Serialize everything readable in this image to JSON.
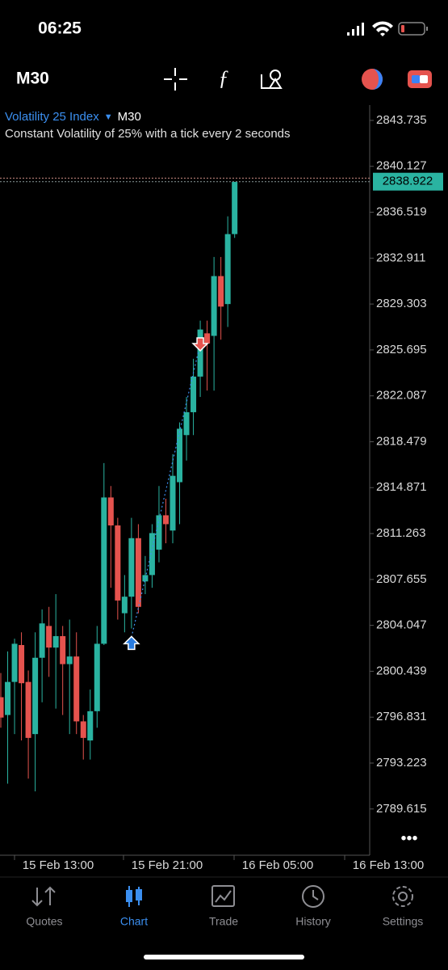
{
  "status_bar": {
    "time": "06:25"
  },
  "toolbar": {
    "timeframe": "M30"
  },
  "chart_header": {
    "symbol": "Volatility 25 Index",
    "timeframe": "M30",
    "description": "Constant Volatility of 25% with a tick every 2 seconds"
  },
  "chart_data": {
    "type": "candlestick",
    "open": [
      2798.4,
      2797.0,
      2799.6,
      2802.5,
      2799.6,
      2795.5,
      2801.5,
      2804.0,
      2802.3,
      2803.2,
      2801.0,
      2801.6,
      2796.5,
      2795.0,
      2797.3,
      2802.6,
      2814.1,
      2811.9,
      2805.0,
      2806.3,
      2810.9,
      2807.5,
      2808.0,
      2810.0,
      2812.7,
      2811.5,
      2815.3,
      2819.0,
      2820.8,
      2823.6,
      2827.0,
      2826.8,
      2831.5,
      2829.3,
      2834.8
    ],
    "high": [
      2800.3,
      2802.0,
      2803.0,
      2803.5,
      2800.5,
      2803.5,
      2805.3,
      2805.5,
      2806.5,
      2804.0,
      2804.5,
      2803.5,
      2797.0,
      2799.0,
      2804.0,
      2816.8,
      2815.0,
      2812.5,
      2808.0,
      2812.5,
      2812.0,
      2809.5,
      2812.0,
      2815.0,
      2814.0,
      2817.5,
      2820.0,
      2822.0,
      2825.0,
      2828.0,
      2828.0,
      2833.0,
      2833.0,
      2836.2,
      2838.9
    ],
    "low": [
      2796.0,
      2791.6,
      2795.5,
      2795.0,
      2792.0,
      2791.0,
      2798.0,
      2800.0,
      2797.5,
      2797.0,
      2795.5,
      2795.5,
      2793.5,
      2793.5,
      2796.0,
      2802.5,
      2807.0,
      2804.5,
      2803.5,
      2803.8,
      2805.0,
      2806.5,
      2807.0,
      2809.0,
      2810.5,
      2810.5,
      2812.0,
      2817.0,
      2819.0,
      2822.0,
      2822.5,
      2822.5,
      2826.5,
      2827.5,
      2834.5
    ],
    "close": [
      2796.8,
      2799.6,
      2802.6,
      2799.5,
      2795.2,
      2801.5,
      2804.2,
      2802.3,
      2803.2,
      2801.0,
      2801.6,
      2796.5,
      2795.2,
      2797.3,
      2802.6,
      2814.1,
      2811.9,
      2806.0,
      2806.3,
      2810.9,
      2805.5,
      2808.0,
      2811.3,
      2812.7,
      2812.0,
      2815.8,
      2819.5,
      2820.8,
      2823.6,
      2827.3,
      2826.2,
      2831.5,
      2829.1,
      2834.8,
      2838.9
    ],
    "up_color": "#2ab3a1",
    "down_color": "#e5534e",
    "ylim": [
      2785.98,
      2844.94
    ],
    "yticks": [
      2843.735,
      2840.127,
      2836.519,
      2832.911,
      2829.303,
      2825.695,
      2822.087,
      2818.479,
      2814.871,
      2811.263,
      2807.655,
      2804.047,
      2800.439,
      2796.831,
      2793.223,
      2789.615
    ],
    "x_labels": [
      "15 Feb 13:00",
      "15 Feb 21:00",
      "16 Feb 05:00",
      "16 Feb 13:00"
    ],
    "current_price": 2838.922,
    "ask_price": 2839.2,
    "buy_marker": {
      "index": 19,
      "price": 2802.6
    },
    "sell_marker": {
      "index": 29,
      "price": 2826.2
    }
  },
  "tabs": [
    {
      "label": "Quotes"
    },
    {
      "label": "Chart"
    },
    {
      "label": "Trade"
    },
    {
      "label": "History"
    },
    {
      "label": "Settings"
    }
  ],
  "active_tab": 1
}
